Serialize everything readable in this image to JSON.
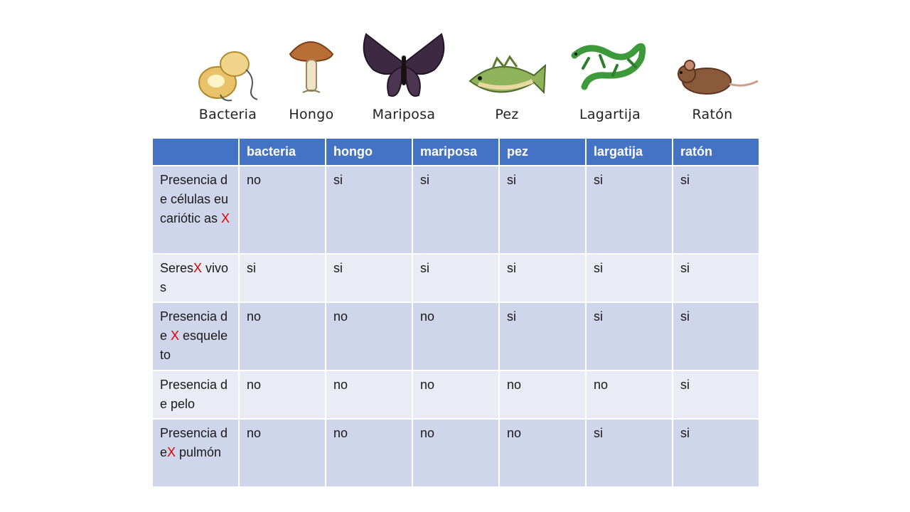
{
  "animals": [
    {
      "label": "Bacteria",
      "icon": "bacteria-illustration"
    },
    {
      "label": "Hongo",
      "icon": "mushroom-illustration"
    },
    {
      "label": "Mariposa",
      "icon": "butterfly-illustration"
    },
    {
      "label": "Pez",
      "icon": "fish-illustration"
    },
    {
      "label": "Lagartija",
      "icon": "lizard-illustration"
    },
    {
      "label": "Ratón",
      "icon": "mouse-illustration"
    }
  ],
  "table": {
    "headers": [
      "",
      "bacteria",
      "hongo",
      "mariposa",
      "pez",
      "largatija",
      "ratón"
    ],
    "rows": [
      {
        "label_parts": [
          "Presencia de células eucariótic as ",
          "X",
          ""
        ],
        "values": [
          "no",
          "si",
          "si",
          "si",
          "si",
          "si"
        ]
      },
      {
        "label_parts": [
          "Seres",
          "X",
          " vivos"
        ],
        "values": [
          "si",
          "si",
          "si",
          "si",
          "si",
          "si"
        ]
      },
      {
        "label_parts": [
          "Presencia de  ",
          "X",
          " esqueleto"
        ],
        "values": [
          "no",
          "no",
          "no",
          "si",
          "si",
          "si"
        ]
      },
      {
        "label_parts": [
          "Presencia de pelo",
          "",
          ""
        ],
        "values": [
          "no",
          "no",
          "no",
          "no",
          "no",
          "si"
        ]
      },
      {
        "label_parts": [
          "Presencia de",
          "X",
          " pulmón"
        ],
        "values": [
          "no",
          "no",
          "no",
          "no",
          "si",
          "si"
        ]
      }
    ]
  },
  "colors": {
    "header_bg": "#4472c4",
    "row_dark": "#cfd5ea",
    "row_light": "#e9ebf5",
    "x_mark": "#e00000"
  }
}
